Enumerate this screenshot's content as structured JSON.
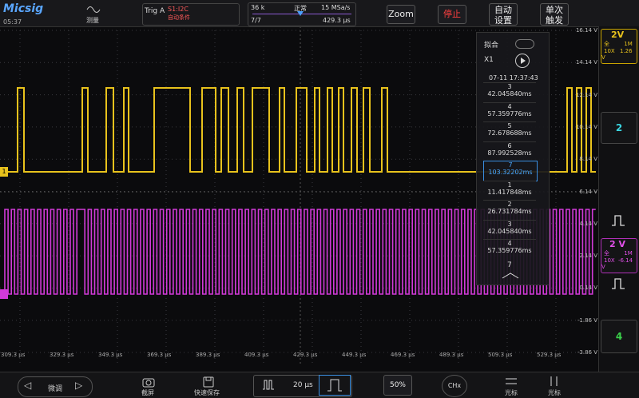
{
  "top_bar": {
    "brand": "Micsig",
    "time": "05:37",
    "measure": "测量",
    "trig_label": "Trig A",
    "trig_source": "S1:I2C",
    "trig_mode": "自动条件",
    "memory_depth": "36 k",
    "acq_mode": "正常",
    "sample_rate": "15 MSa/s",
    "frame": "7/7",
    "position": "429.3 µs",
    "zoom": "Zoom",
    "stop": "停止",
    "auto_setup": [
      "自动",
      "设置"
    ],
    "single": [
      "单次",
      "触发"
    ]
  },
  "channels": [
    {
      "label": "2V",
      "coupling": "全",
      "impedance": "1M",
      "probe": "10X",
      "offset": "1.26 V"
    },
    {
      "label": "2"
    },
    {
      "label": "2 V",
      "coupling": "全",
      "impedance": "1M",
      "probe": "10X",
      "offset": "-6.14 V"
    },
    {
      "label": "4"
    }
  ],
  "voltage_labels": [
    "16.14 V",
    "14.14 V",
    "12.14 V",
    "10.14 V",
    "8.14 V",
    "6.14 V",
    "4.14 V",
    "2.14 V",
    "0.14 V",
    "-1.86 V",
    "-3.86 V"
  ],
  "time_labels": [
    "309.3 µs",
    "329.3 µs",
    "349.3 µs",
    "369.3 µs",
    "389.3 µs",
    "409.3 µs",
    "429.3 µs",
    "449.3 µs",
    "469.3 µs",
    "489.3 µs",
    "509.3 µs",
    "529.3 µs"
  ],
  "ch1_marker": "1",
  "history": {
    "fit": "拟合",
    "zoom": "X1",
    "timestamp": "07-11 17:37:43",
    "entries": [
      {
        "index": "3",
        "time": "42.045840ms"
      },
      {
        "index": "4",
        "time": "57.359776ms"
      },
      {
        "index": "5",
        "time": "72.678688ms"
      },
      {
        "index": "6",
        "time": "87.992528ms"
      },
      {
        "index": "7",
        "time": "103.32202ms"
      },
      {
        "index": "1",
        "time": "11.417848ms"
      },
      {
        "index": "2",
        "time": "26.731784ms"
      },
      {
        "index": "3",
        "time": "42.045840ms"
      },
      {
        "index": "4",
        "time": "57.359776ms"
      }
    ],
    "footer": "7"
  },
  "bottom_bar": {
    "fine": "微调",
    "screenshot": "截屏",
    "quick_save": "快速保存",
    "timebase": "20 µs",
    "trigger_level": "50%",
    "channel": "CHx",
    "cursor_1": "光标",
    "cursor_2": "光标"
  }
}
